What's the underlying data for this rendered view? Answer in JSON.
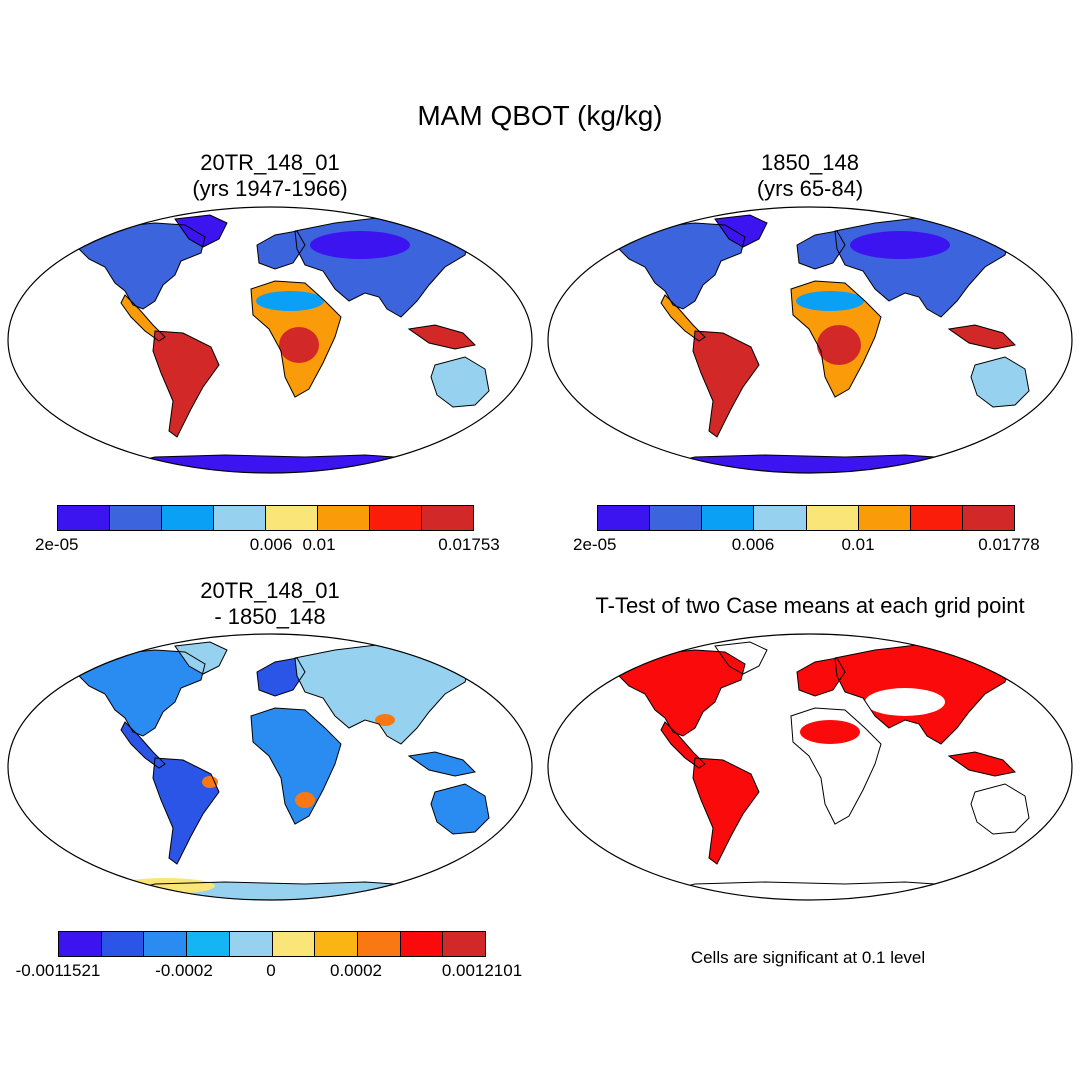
{
  "title": "MAM QBOT (kg/kg)",
  "panels": {
    "top_left": {
      "title_line1": "20TR_148_01",
      "title_line2": "(yrs 1947-1966)",
      "colorbar": {
        "colors": [
          "#3c14f0",
          "#3c64dc",
          "#0aa0f5",
          "#96d2f0",
          "#fae678",
          "#fa9b0a",
          "#fa1e0a",
          "#d22828"
        ],
        "labels": [
          "2e-05",
          "0.006",
          "0.01",
          "0.01753"
        ]
      }
    },
    "top_right": {
      "title_line1": "1850_148",
      "title_line2": "(yrs 65-84)",
      "colorbar": {
        "colors": [
          "#3c14f0",
          "#3c64dc",
          "#0aa0f5",
          "#96d2f0",
          "#fae678",
          "#fa9b0a",
          "#fa1e0a",
          "#d22828"
        ],
        "labels": [
          "2e-05",
          "0.006",
          "0.01",
          "0.01778"
        ]
      }
    },
    "bottom_left": {
      "title_line1": "20TR_148_01",
      "title_line2": "- 1850_148",
      "colorbar": {
        "colors": [
          "#3c14f0",
          "#2a55e6",
          "#2a8cf0",
          "#14b4f5",
          "#96d2f0",
          "#fae678",
          "#fab414",
          "#fa7814",
          "#fa0a0a",
          "#d22828"
        ],
        "labels": [
          "-0.0011521",
          "-0.0002",
          "0",
          "0.0002",
          "0.0012101"
        ]
      }
    },
    "bottom_right": {
      "title": "T-Test of two Case means at each grid point",
      "note": "Cells are significant at 0.1 level"
    }
  }
}
